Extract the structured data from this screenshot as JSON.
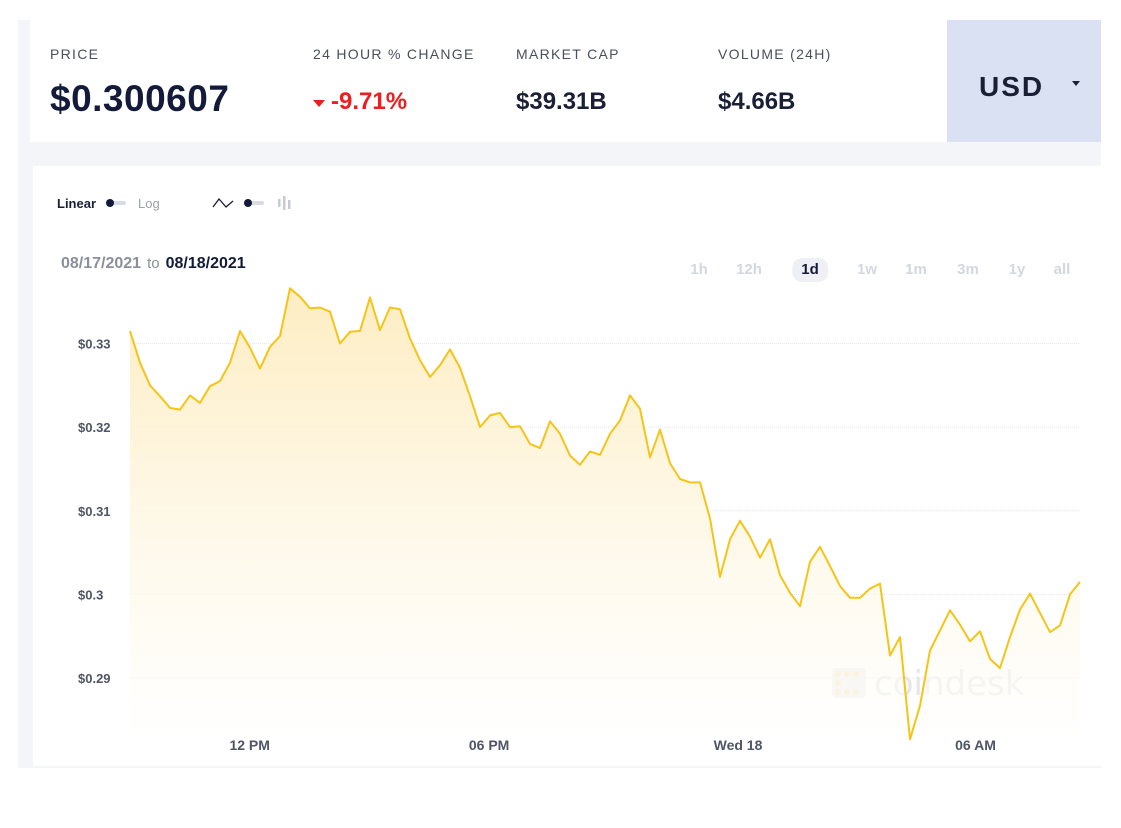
{
  "stats": {
    "price": {
      "label": "PRICE",
      "value": "$0.300607"
    },
    "change": {
      "label": "24 HOUR % CHANGE",
      "value": "-9.71%"
    },
    "market_cap": {
      "label": "MARKET CAP",
      "value": "$39.31B"
    },
    "volume": {
      "label": "VOLUME (24H)",
      "value": "$4.66B"
    }
  },
  "currency": {
    "label": "USD",
    "icon": "chevron-down-icon"
  },
  "toggles": {
    "scale_linear": "Linear",
    "scale_log": "Log",
    "line_icon": "line-chart-icon",
    "candle_icon": "candlestick-icon"
  },
  "range": {
    "from": "08/17/2021",
    "to_word": "to",
    "to": "08/18/2021"
  },
  "periods": [
    {
      "label": "1h",
      "active": false
    },
    {
      "label": "12h",
      "active": false
    },
    {
      "label": "1d",
      "active": true
    },
    {
      "label": "1w",
      "active": false
    },
    {
      "label": "1m",
      "active": false
    },
    {
      "label": "3m",
      "active": false
    },
    {
      "label": "1y",
      "active": false
    },
    {
      "label": "all",
      "active": false
    }
  ],
  "watermark": {
    "text": "coindesk"
  },
  "colors": {
    "line": "#f5c417",
    "fill_top": "#fdecbf",
    "negative": "#ef1d1d",
    "currency_bg": "#dae1f2"
  },
  "chart_data": {
    "type": "area",
    "yticks": [
      {
        "value": 0.33,
        "label": "$0.33"
      },
      {
        "value": 0.32,
        "label": "$0.32"
      },
      {
        "value": 0.31,
        "label": "$0.31"
      },
      {
        "value": 0.3,
        "label": "$0.3"
      },
      {
        "value": 0.29,
        "label": "$0.29"
      }
    ],
    "xticks": [
      {
        "x": 0.126,
        "label": "12 PM"
      },
      {
        "x": 0.378,
        "label": "06 PM"
      },
      {
        "x": 0.64,
        "label": "Wed 18"
      },
      {
        "x": 0.89,
        "label": "06 AM"
      }
    ],
    "xlim": [
      0,
      1
    ],
    "ylim": [
      0.2826,
      0.3352
    ],
    "values": [
      0.3315,
      0.3277,
      0.325,
      0.3237,
      0.3223,
      0.3221,
      0.3238,
      0.3229,
      0.3249,
      0.3255,
      0.3277,
      0.3315,
      0.3295,
      0.327,
      0.3296,
      0.3309,
      0.3366,
      0.3356,
      0.3342,
      0.3343,
      0.3338,
      0.33,
      0.3314,
      0.3315,
      0.3355,
      0.3316,
      0.3343,
      0.3341,
      0.3306,
      0.328,
      0.326,
      0.3274,
      0.3293,
      0.3271,
      0.3237,
      0.32,
      0.3214,
      0.3217,
      0.32,
      0.3201,
      0.318,
      0.3175,
      0.3207,
      0.3192,
      0.3166,
      0.3155,
      0.3171,
      0.3167,
      0.3192,
      0.3208,
      0.3238,
      0.3222,
      0.3164,
      0.3197,
      0.3157,
      0.3138,
      0.3134,
      0.3134,
      0.3091,
      0.3021,
      0.3066,
      0.3088,
      0.3069,
      0.3044,
      0.3066,
      0.3023,
      0.3002,
      0.2986,
      0.3039,
      0.3057,
      0.3034,
      0.301,
      0.2996,
      0.2996,
      0.3007,
      0.3013,
      0.2927,
      0.2949,
      0.2827,
      0.2867,
      0.2933,
      0.2957,
      0.2981,
      0.2964,
      0.2944,
      0.2956,
      0.2923,
      0.2912,
      0.2949,
      0.2982,
      0.3001,
      0.2978,
      0.2955,
      0.2963,
      0.3,
      0.3015
    ]
  }
}
